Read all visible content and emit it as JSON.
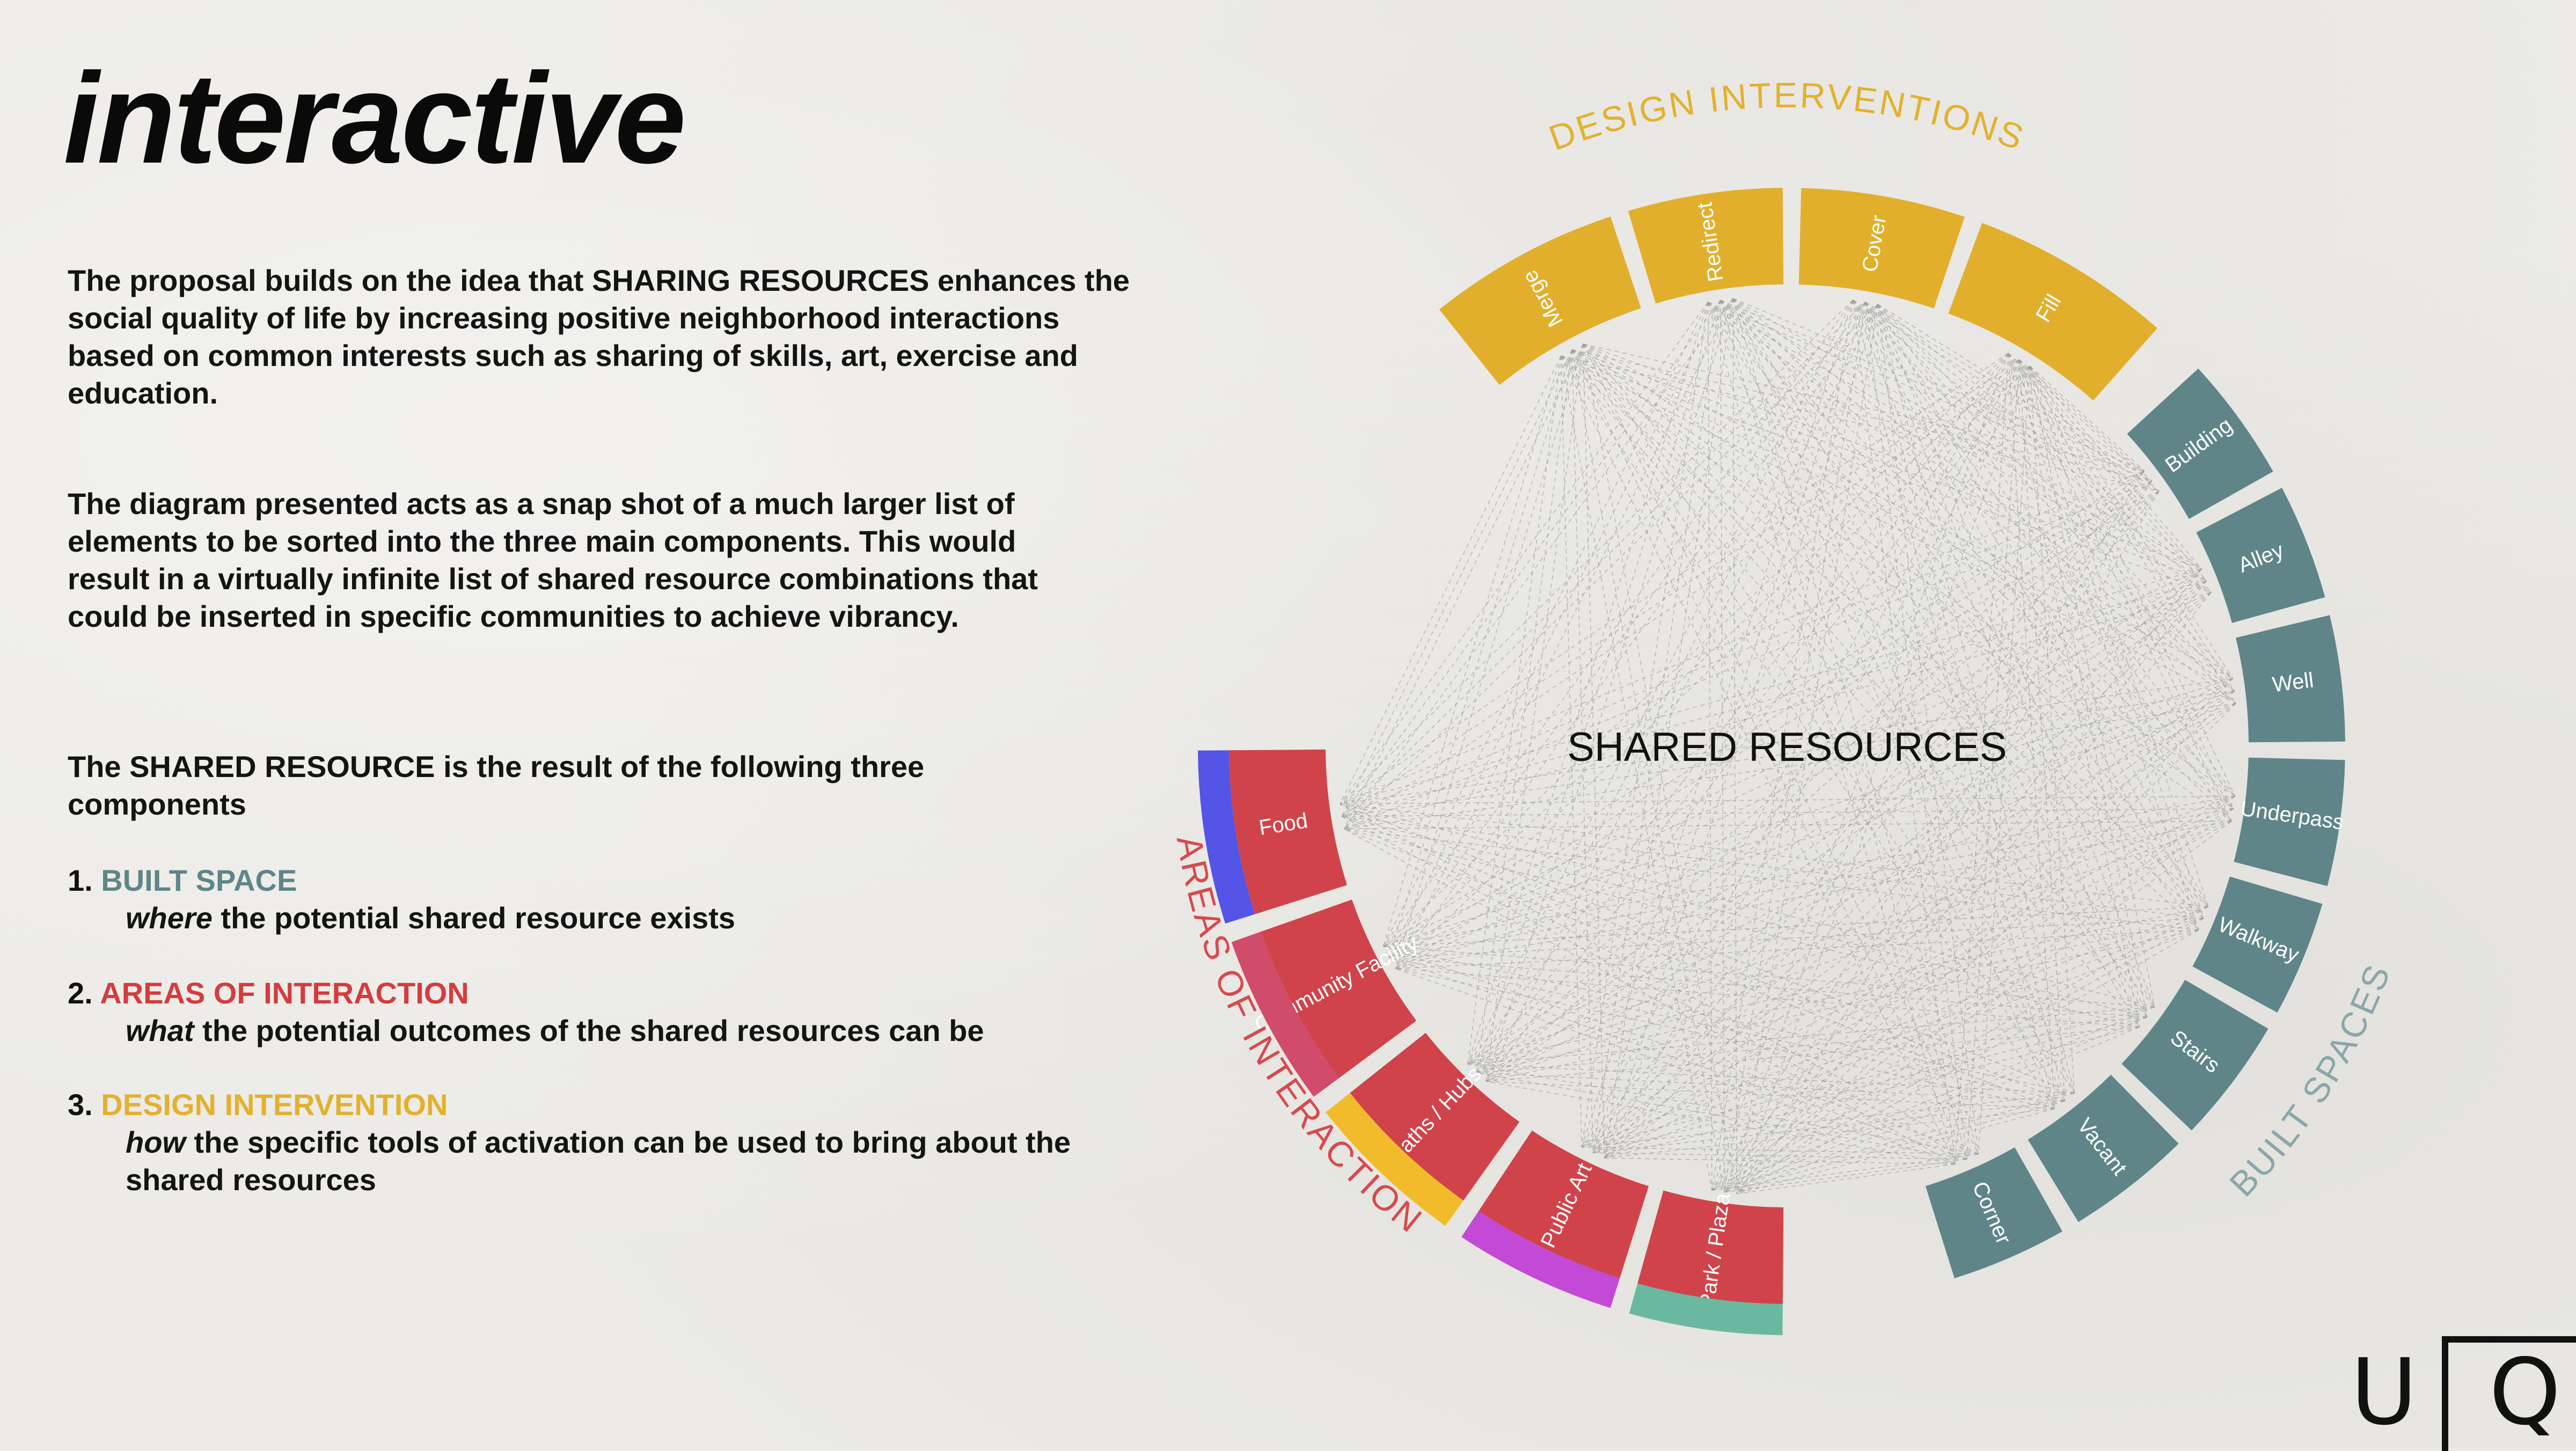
{
  "title": "interactive",
  "paragraphs": [
    "The proposal builds on the idea that SHARING RESOURCES enhances the social quality of life by increasing positive neighborhood interactions based on common interests such as sharing of skills, art, exercise and education.",
    "The diagram presented acts as a snap shot of a much larger list of elements to be sorted into the three main components. This would result in a virtually infinite list of shared resource combinations that could be inserted in specific communities to achieve vibrancy.",
    "The SHARED RESOURCE is the result of the following three components"
  ],
  "components": [
    {
      "number": "1.",
      "name": "BUILT SPACE",
      "lead": "where",
      "rest": " the potential shared resource exists",
      "color": "#5f8589"
    },
    {
      "number": "2.",
      "name": "AREAS OF INTERACTION",
      "lead": "what",
      "rest": " the potential outcomes of the shared resources can be",
      "color": "#d43c3e"
    },
    {
      "number": "3.",
      "name": "DESIGN INTERVENTION",
      "lead": "how",
      "rest": " the specific tools of activation can be used to bring about the shared resources",
      "color": "#e3b12d"
    }
  ],
  "diagram": {
    "center_label": "SHARED RESOURCES",
    "group_labels": {
      "design_interventions": "DESIGN INTERVENTIONS",
      "built_spaces": "BUILT SPACES",
      "areas_of_interaction": "AREAS OF INTERACTION"
    },
    "colors": {
      "design": "#e2af2c",
      "built": "#5f8589",
      "interaction": "#d0434a",
      "design_label": "#e3b12d",
      "built_label": "#8aa7aa",
      "interaction_label": "#d64a4d"
    },
    "design_interventions": [
      "Merge",
      "Redirect",
      "Cover",
      "Fill"
    ],
    "built_spaces": [
      "Building",
      "Alley",
      "Well",
      "Underpass",
      "Walkway",
      "Stairs",
      "Vacant",
      "Corner"
    ],
    "areas_of_interaction": [
      "Park / Plaza",
      "Public Art",
      "Paths / Hubs",
      "Community Facility",
      "Food"
    ],
    "interaction_accent_colors": [
      "#6bb8a0",
      "#c24ad6",
      "#f2bb2c",
      "#d14b6a",
      "#5454e6"
    ]
  },
  "logo": {
    "left": "U",
    "right": "Q"
  }
}
